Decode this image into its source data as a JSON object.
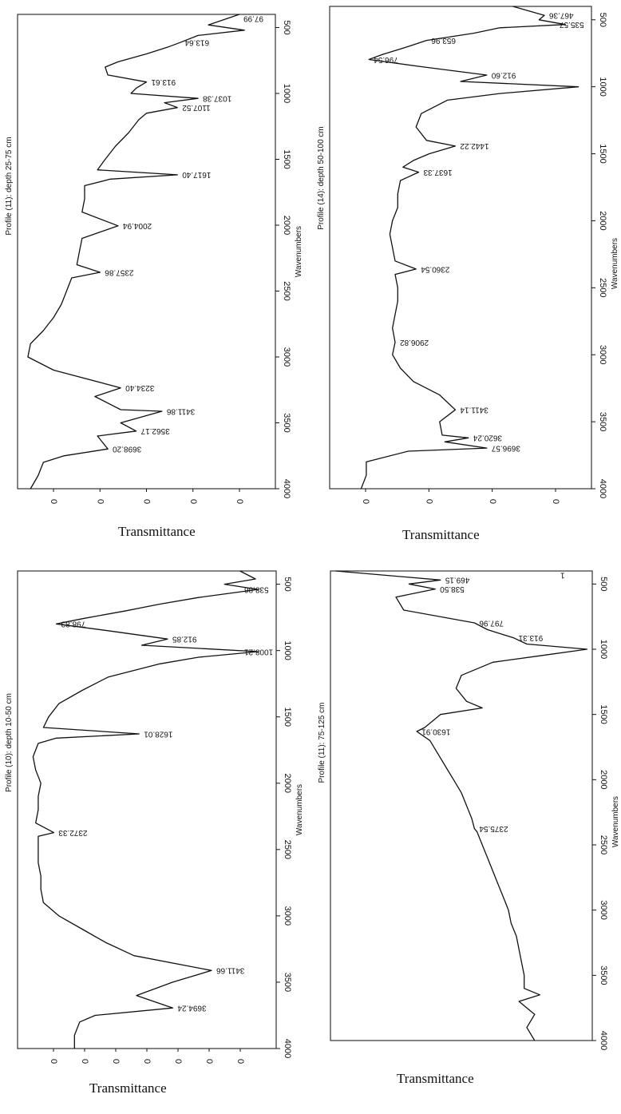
{
  "colors": {
    "ink": "#111111",
    "frame": "#333333",
    "background": "#ffffff"
  },
  "chart_data": [
    {
      "type": "line",
      "panel": "top-left",
      "title": "Profile (11): depth 25-75 cm",
      "xlabel": "Transmittance",
      "ylabel": "Wavenumbers",
      "ylim": [
        4000,
        400
      ],
      "yticks": [
        "500",
        "1000",
        "1500",
        "2000",
        "2500",
        "3000",
        "3500",
        "4000"
      ],
      "xticks": [
        "0",
        "0",
        "0",
        "0",
        "0"
      ],
      "series": [
        {
          "points": [
            [
              400,
              0.86
            ],
            [
              480,
              0.74
            ],
            [
              520,
              0.88
            ],
            [
              560,
              0.7
            ],
            [
              613.64,
              0.63
            ],
            [
              650,
              0.58
            ],
            [
              700,
              0.5
            ],
            [
              760,
              0.39
            ],
            [
              800,
              0.34
            ],
            [
              860,
              0.35
            ],
            [
              913.61,
              0.5
            ],
            [
              960,
              0.46
            ],
            [
              1000,
              0.44
            ],
            [
              1037.38,
              0.7
            ],
            [
              1070,
              0.57
            ],
            [
              1107.52,
              0.62
            ],
            [
              1150,
              0.5
            ],
            [
              1200,
              0.47
            ],
            [
              1300,
              0.43
            ],
            [
              1400,
              0.38
            ],
            [
              1500,
              0.34
            ],
            [
              1580,
              0.31
            ],
            [
              1617.4,
              0.62
            ],
            [
              1650,
              0.36
            ],
            [
              1700,
              0.26
            ],
            [
              1800,
              0.26
            ],
            [
              1900,
              0.25
            ],
            [
              2004.94,
              0.39
            ],
            [
              2100,
              0.25
            ],
            [
              2200,
              0.24
            ],
            [
              2300,
              0.23
            ],
            [
              2357.86,
              0.32
            ],
            [
              2400,
              0.21
            ],
            [
              2500,
              0.19
            ],
            [
              2600,
              0.17
            ],
            [
              2700,
              0.14
            ],
            [
              2800,
              0.1
            ],
            [
              2900,
              0.05
            ],
            [
              3000,
              0.04
            ],
            [
              3100,
              0.14
            ],
            [
              3234.4,
              0.4
            ],
            [
              3300,
              0.3
            ],
            [
              3400,
              0.4
            ],
            [
              3411.86,
              0.56
            ],
            [
              3500,
              0.4
            ],
            [
              3562.17,
              0.46
            ],
            [
              3600,
              0.31
            ],
            [
              3698.2,
              0.35
            ],
            [
              3750,
              0.18
            ],
            [
              3800,
              0.1
            ],
            [
              3900,
              0.08
            ],
            [
              4000,
              0.05
            ]
          ]
        }
      ],
      "annotations": [
        "97.99",
        "613.64",
        "913.61",
        "1037.38",
        "1107.52",
        "1617.40",
        "2004.94",
        "2357.86",
        "3234.40",
        "3411.86",
        "3562.17",
        "3698.20"
      ]
    },
    {
      "type": "line",
      "panel": "top-right",
      "title": "Profile (14): depth 50-100 cm",
      "xlabel": "Transmittance",
      "ylabel": "Wavenumbers",
      "ylim": [
        4000,
        400
      ],
      "yticks": [
        "500",
        "1000",
        "1500",
        "2000",
        "2500",
        "3000",
        "3500",
        "4000"
      ],
      "xticks": [
        "0",
        "0",
        "0",
        "0"
      ],
      "series": [
        {
          "points": [
            [
              400,
              0.7
            ],
            [
              467.36,
              0.82
            ],
            [
              500,
              0.8
            ],
            [
              535.57,
              0.9
            ],
            [
              560,
              0.65
            ],
            [
              600,
              0.55
            ],
            [
              653.96,
              0.37
            ],
            [
              700,
              0.3
            ],
            [
              760,
              0.2
            ],
            [
              796.54,
              0.15
            ],
            [
              850,
              0.35
            ],
            [
              912.6,
              0.6
            ],
            [
              960,
              0.5
            ],
            [
              1000,
              0.95
            ],
            [
              1050,
              0.65
            ],
            [
              1100,
              0.45
            ],
            [
              1200,
              0.35
            ],
            [
              1300,
              0.33
            ],
            [
              1400,
              0.37
            ],
            [
              1442.22,
              0.48
            ],
            [
              1500,
              0.38
            ],
            [
              1550,
              0.32
            ],
            [
              1600,
              0.28
            ],
            [
              1637.33,
              0.34
            ],
            [
              1700,
              0.27
            ],
            [
              1800,
              0.26
            ],
            [
              1900,
              0.26
            ],
            [
              2000,
              0.24
            ],
            [
              2100,
              0.23
            ],
            [
              2200,
              0.24
            ],
            [
              2300,
              0.25
            ],
            [
              2360.54,
              0.33
            ],
            [
              2400,
              0.25
            ],
            [
              2500,
              0.26
            ],
            [
              2600,
              0.26
            ],
            [
              2700,
              0.25
            ],
            [
              2800,
              0.24
            ],
            [
              2906.82,
              0.25
            ],
            [
              3000,
              0.24
            ],
            [
              3100,
              0.27
            ],
            [
              3200,
              0.32
            ],
            [
              3300,
              0.42
            ],
            [
              3411.14,
              0.48
            ],
            [
              3500,
              0.42
            ],
            [
              3600,
              0.43
            ],
            [
              3620.24,
              0.53
            ],
            [
              3650,
              0.44
            ],
            [
              3696.57,
              0.6
            ],
            [
              3720,
              0.3
            ],
            [
              3800,
              0.14
            ],
            [
              3900,
              0.14
            ],
            [
              4000,
              0.12
            ]
          ]
        }
      ],
      "annotations": [
        "467.36",
        "535.57",
        "653.96",
        "796.54",
        "912.60",
        "1442.22",
        "1637.33",
        "2360.54",
        "2906.82",
        "3411.14",
        "3620.24",
        "3696.57"
      ]
    },
    {
      "type": "line",
      "panel": "bottom-left",
      "title": "Profile (10): depth 10-50 cm",
      "xlabel": "Transmittance",
      "ylabel": "Wavenumbers",
      "ylim": [
        4000,
        400
      ],
      "yticks": [
        "500",
        "1000",
        "1500",
        "2000",
        "2500",
        "3000",
        "3500",
        "4000"
      ],
      "xticks": [
        "0",
        "0",
        "0",
        "0",
        "0",
        "0",
        "0"
      ],
      "series": [
        {
          "points": [
            [
              400,
              0.86
            ],
            [
              460,
              0.92
            ],
            [
              500,
              0.8
            ],
            [
              538.86,
              0.93
            ],
            [
              600,
              0.7
            ],
            [
              650,
              0.55
            ],
            [
              700,
              0.42
            ],
            [
              760,
              0.25
            ],
            [
              798.83,
              0.15
            ],
            [
              850,
              0.35
            ],
            [
              912.85,
              0.58
            ],
            [
              960,
              0.48
            ],
            [
              1008.21,
              0.93
            ],
            [
              1050,
              0.7
            ],
            [
              1100,
              0.55
            ],
            [
              1200,
              0.35
            ],
            [
              1300,
              0.25
            ],
            [
              1400,
              0.16
            ],
            [
              1500,
              0.12
            ],
            [
              1580,
              0.1
            ],
            [
              1628.01,
              0.47
            ],
            [
              1660,
              0.15
            ],
            [
              1700,
              0.08
            ],
            [
              1800,
              0.06
            ],
            [
              1900,
              0.07
            ],
            [
              2000,
              0.09
            ],
            [
              2100,
              0.08
            ],
            [
              2200,
              0.08
            ],
            [
              2300,
              0.07
            ],
            [
              2372.33,
              0.14
            ],
            [
              2400,
              0.08
            ],
            [
              2500,
              0.08
            ],
            [
              2600,
              0.08
            ],
            [
              2700,
              0.09
            ],
            [
              2800,
              0.09
            ],
            [
              2900,
              0.1
            ],
            [
              3000,
              0.16
            ],
            [
              3100,
              0.25
            ],
            [
              3200,
              0.34
            ],
            [
              3300,
              0.45
            ],
            [
              3411.66,
              0.75
            ],
            [
              3500,
              0.6
            ],
            [
              3600,
              0.46
            ],
            [
              3694.24,
              0.6
            ],
            [
              3750,
              0.3
            ],
            [
              3800,
              0.24
            ],
            [
              3900,
              0.22
            ],
            [
              4000,
              0.22
            ]
          ]
        }
      ],
      "annotations": [
        "538.86",
        "798.83",
        "912.85",
        "1008.21",
        "1628.01",
        "2372.33",
        "3411.66",
        "3694.24"
      ]
    },
    {
      "type": "line",
      "panel": "bottom-right",
      "title": "Profile (11): 75-125 cm",
      "xlabel": "Transmittance",
      "ylabel": "Wavenumbers",
      "ylim": [
        4000,
        400
      ],
      "yticks": [
        "500",
        "1000",
        "1500",
        "2000",
        "2500",
        "3000",
        "3500",
        "4000"
      ],
      "xticks": [],
      "series": [
        {
          "points": [
            [
              400,
              0.02
            ],
            [
              469.15,
              0.42
            ],
            [
              500,
              0.3
            ],
            [
              538.5,
              0.4
            ],
            [
              600,
              0.25
            ],
            [
              700,
              0.28
            ],
            [
              797.96,
              0.55
            ],
            [
              850,
              0.6
            ],
            [
              913.31,
              0.7
            ],
            [
              960,
              0.75
            ],
            [
              1000,
              0.98
            ],
            [
              1050,
              0.8
            ],
            [
              1100,
              0.62
            ],
            [
              1200,
              0.5
            ],
            [
              1300,
              0.48
            ],
            [
              1400,
              0.52
            ],
            [
              1450,
              0.58
            ],
            [
              1500,
              0.42
            ],
            [
              1600,
              0.36
            ],
            [
              1630.91,
              0.33
            ],
            [
              1700,
              0.38
            ],
            [
              1800,
              0.41
            ],
            [
              1900,
              0.44
            ],
            [
              2000,
              0.47
            ],
            [
              2100,
              0.5
            ],
            [
              2200,
              0.52
            ],
            [
              2300,
              0.54
            ],
            [
              2375.54,
              0.55
            ],
            [
              2400,
              0.56
            ],
            [
              2500,
              0.58
            ],
            [
              2600,
              0.6
            ],
            [
              2700,
              0.62
            ],
            [
              2800,
              0.64
            ],
            [
              2900,
              0.66
            ],
            [
              3000,
              0.68
            ],
            [
              3100,
              0.69
            ],
            [
              3200,
              0.71
            ],
            [
              3300,
              0.72
            ],
            [
              3400,
              0.73
            ],
            [
              3500,
              0.74
            ],
            [
              3600,
              0.74
            ],
            [
              3650,
              0.8
            ],
            [
              3700,
              0.72
            ],
            [
              3800,
              0.78
            ],
            [
              3900,
              0.75
            ],
            [
              4000,
              0.78
            ]
          ]
        }
      ],
      "annotations": [
        "469.15",
        "538.50",
        "797.96",
        "913.31",
        "1630.91",
        "2375.54",
        "1"
      ]
    }
  ]
}
